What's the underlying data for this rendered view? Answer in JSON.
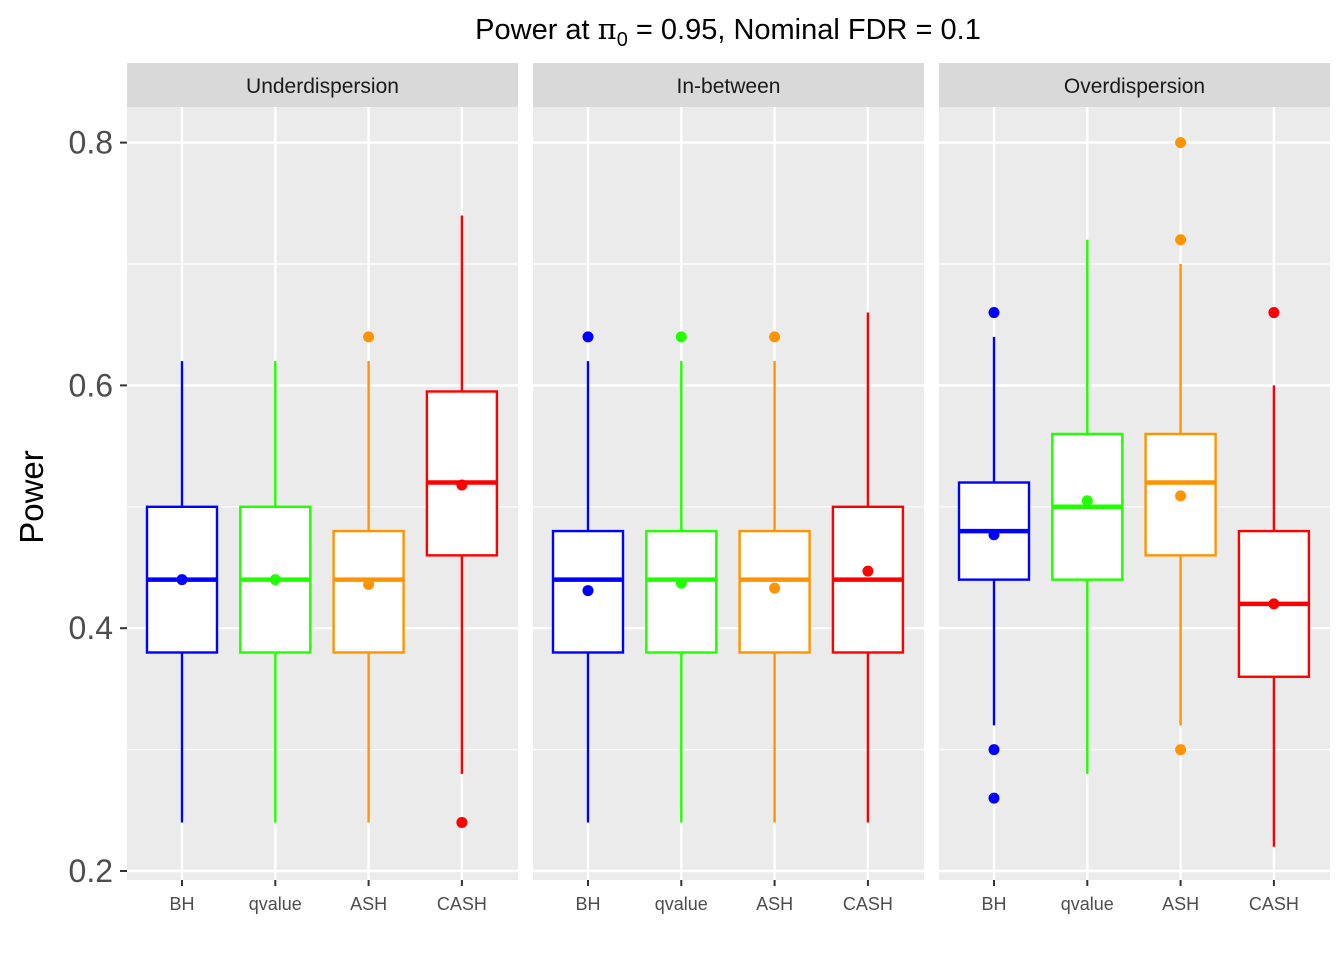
{
  "chart_data": {
    "type": "boxplot",
    "title": {
      "prefix": "Power at ",
      "symbol": "π",
      "subscript": "0",
      "suffix": " = 0.95, Nominal FDR = 0.1"
    },
    "ylabel": "Power",
    "xlabel": "",
    "ylim": [
      0.2,
      0.8
    ],
    "yticks": [
      "0.2",
      "0.4",
      "0.6",
      "0.8"
    ],
    "grid": true,
    "categories": [
      "BH",
      "qvalue",
      "ASH",
      "CASH"
    ],
    "colors": {
      "BH": "#0000FF",
      "qvalue": "#22FF00",
      "ASH": "#FF9400",
      "CASH": "#FF0000"
    },
    "panels": [
      {
        "name": "Underdispersion",
        "boxes": [
          {
            "method": "BH",
            "lower_whisker": 0.24,
            "q1": 0.38,
            "median": 0.44,
            "q3": 0.5,
            "upper_whisker": 0.62,
            "mean": 0.44,
            "outliers": []
          },
          {
            "method": "qvalue",
            "lower_whisker": 0.24,
            "q1": 0.38,
            "median": 0.44,
            "q3": 0.5,
            "upper_whisker": 0.62,
            "mean": 0.44,
            "outliers": []
          },
          {
            "method": "ASH",
            "lower_whisker": 0.24,
            "q1": 0.38,
            "median": 0.44,
            "q3": 0.48,
            "upper_whisker": 0.62,
            "mean": 0.436,
            "outliers": [
              0.64
            ]
          },
          {
            "method": "CASH",
            "lower_whisker": 0.28,
            "q1": 0.46,
            "median": 0.52,
            "q3": 0.595,
            "upper_whisker": 0.74,
            "mean": 0.518,
            "outliers": [
              0.24
            ]
          }
        ]
      },
      {
        "name": "In-between",
        "boxes": [
          {
            "method": "BH",
            "lower_whisker": 0.24,
            "q1": 0.38,
            "median": 0.44,
            "q3": 0.48,
            "upper_whisker": 0.62,
            "mean": 0.431,
            "outliers": [
              0.64
            ]
          },
          {
            "method": "qvalue",
            "lower_whisker": 0.24,
            "q1": 0.38,
            "median": 0.44,
            "q3": 0.48,
            "upper_whisker": 0.62,
            "mean": 0.437,
            "outliers": [
              0.64
            ]
          },
          {
            "method": "ASH",
            "lower_whisker": 0.24,
            "q1": 0.38,
            "median": 0.44,
            "q3": 0.48,
            "upper_whisker": 0.62,
            "mean": 0.433,
            "outliers": [
              0.64
            ]
          },
          {
            "method": "CASH",
            "lower_whisker": 0.24,
            "q1": 0.38,
            "median": 0.44,
            "q3": 0.5,
            "upper_whisker": 0.66,
            "mean": 0.447,
            "outliers": []
          }
        ]
      },
      {
        "name": "Overdispersion",
        "boxes": [
          {
            "method": "BH",
            "lower_whisker": 0.32,
            "q1": 0.44,
            "median": 0.48,
            "q3": 0.52,
            "upper_whisker": 0.64,
            "mean": 0.477,
            "outliers": [
              0.66,
              0.3,
              0.26
            ]
          },
          {
            "method": "qvalue",
            "lower_whisker": 0.28,
            "q1": 0.44,
            "median": 0.5,
            "q3": 0.56,
            "upper_whisker": 0.72,
            "mean": 0.505,
            "outliers": []
          },
          {
            "method": "ASH",
            "lower_whisker": 0.32,
            "q1": 0.46,
            "median": 0.52,
            "q3": 0.56,
            "upper_whisker": 0.7,
            "mean": 0.509,
            "outliers": [
              0.8,
              0.72,
              0.3
            ]
          },
          {
            "method": "CASH",
            "lower_whisker": 0.22,
            "q1": 0.36,
            "median": 0.42,
            "q3": 0.48,
            "upper_whisker": 0.6,
            "mean": 0.42,
            "outliers": [
              0.66
            ]
          }
        ]
      }
    ]
  }
}
